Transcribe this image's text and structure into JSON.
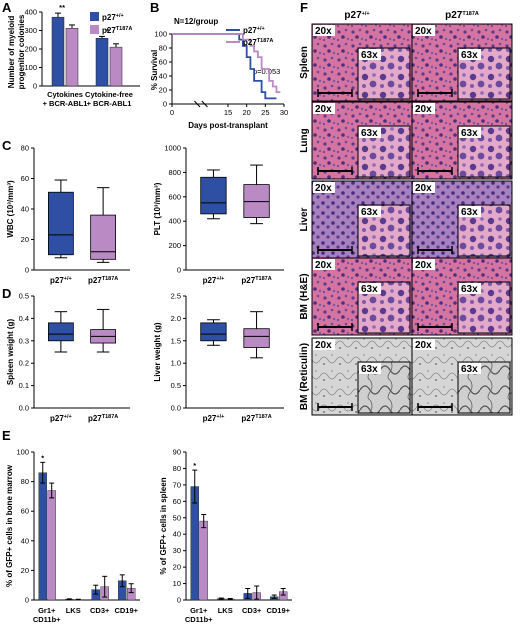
{
  "colors": {
    "blue": "#2E4FA3",
    "pink": "#B98AC4",
    "he_pink": "#D96F9B",
    "he_purple": "#5B3A8C",
    "reticulin": "#C9C9C9"
  },
  "groups": {
    "wt": "p27+/+",
    "mut": "p27T187A"
  },
  "groups_parts": {
    "wt_base": "p27",
    "wt_sup": "+/+",
    "mut_base": "p27",
    "mut_sup": "T187A"
  },
  "panelA": {
    "label": "A",
    "ylabel_line1": "Number of myeloid",
    "ylabel_line2": "progenitor colonies",
    "yticks": [
      "0",
      "100",
      "200",
      "300",
      "400"
    ],
    "categories": [
      {
        "line1": "Cytokines",
        "line2": "+ BCR-ABL1",
        "sig": "**"
      },
      {
        "line1": "Cytokine-free",
        "line2": "+ BCR-ABL1",
        "sig": "*"
      }
    ]
  },
  "panelB": {
    "label": "B",
    "n_label": "N=12/group",
    "pvalue": "p=0.053",
    "ylabel": "% Survival",
    "xlabel": "Days post-transplant",
    "yticks": [
      "0",
      "20",
      "40",
      "60",
      "80",
      "100"
    ],
    "xticks": [
      "0",
      "15",
      "20",
      "25",
      "30"
    ]
  },
  "panelC": {
    "label": "C",
    "wbc_ylabel": "WBC (10³/mm³)",
    "plt_ylabel": "PLT (10³/mm³)",
    "wbc_yticks": [
      "0",
      "20",
      "40",
      "60",
      "80"
    ],
    "plt_yticks": [
      "0",
      "200",
      "400",
      "600",
      "800",
      "1000"
    ]
  },
  "panelD": {
    "label": "D",
    "spleen_ylabel": "Spleen weight (g)",
    "liver_ylabel": "Liver weight (g)",
    "spleen_yticks": [
      "0.0",
      "0.1",
      "0.2",
      "0.3",
      "0.4",
      "0.5"
    ],
    "liver_yticks": [
      "0.0",
      "0.5",
      "1.0",
      "1.5",
      "2.0",
      "2.5"
    ]
  },
  "panelE": {
    "label": "E",
    "bm_ylabel": "% of GFP+ cells in bone marrow",
    "spl_ylabel": "% of GFP+ cells in spleen",
    "bm_yticks": [
      "0",
      "20",
      "40",
      "60",
      "80",
      "100"
    ],
    "spl_yticks": [
      "0",
      "10",
      "20",
      "30",
      "40",
      "50",
      "60",
      "70",
      "80",
      "90"
    ],
    "categories": [
      {
        "line1": "Gr1+",
        "line2": "CD11b+"
      },
      {
        "line1": "LKS",
        "line2": ""
      },
      {
        "line1": "CD3+",
        "line2": ""
      },
      {
        "line1": "CD19+",
        "line2": ""
      }
    ],
    "sig": "*"
  },
  "panelF": {
    "label": "F",
    "col_wt": "p27+/+",
    "col_mut": "p27T187A",
    "rows": [
      "Spleen",
      "Lung",
      "Liver",
      "BM (H&E)",
      "BM (Reticulin)"
    ],
    "mag_low": "20x",
    "mag_high": "63x"
  },
  "chart_data": [
    {
      "type": "bar",
      "panel": "A",
      "categories": [
        "Cytokines + BCR-ABL1",
        "Cytokine-free + BCR-ABL1"
      ],
      "series": [
        {
          "name": "p27+/+",
          "values": [
            372,
            258
          ]
        },
        {
          "name": "p27T187A",
          "values": [
            312,
            210
          ]
        }
      ],
      "errors": [
        [
          22,
          10
        ],
        [
          18,
          18
        ]
      ],
      "ylim": [
        0,
        400
      ]
    },
    {
      "type": "line",
      "panel": "B",
      "xlim": [
        0,
        30
      ],
      "ylim": [
        0,
        100
      ],
      "series": [
        {
          "name": "p27+/+",
          "x": [
            0,
            15,
            18,
            18,
            19,
            19,
            20,
            20,
            21,
            21,
            22,
            22,
            24,
            24,
            25,
            25,
            28
          ],
          "y": [
            100,
            100,
            100,
            92,
            92,
            83,
            83,
            67,
            67,
            50,
            50,
            33,
            33,
            17,
            17,
            8,
            8
          ]
        },
        {
          "name": "p27T187A",
          "x": [
            0,
            15,
            19,
            19,
            21,
            21,
            22,
            22,
            23,
            23,
            24,
            24,
            26,
            26,
            27,
            27,
            28,
            28,
            29
          ],
          "y": [
            100,
            100,
            100,
            92,
            92,
            83,
            83,
            75,
            75,
            67,
            67,
            50,
            50,
            33,
            33,
            25,
            25,
            17,
            17
          ]
        }
      ]
    },
    {
      "type": "box",
      "panel": "C-WBC",
      "ylim": [
        0,
        80
      ],
      "categories": [
        "p27+/+",
        "p27T187A"
      ],
      "series": [
        {
          "name": "p27+/+",
          "min": 8,
          "q1": 10,
          "median": 23,
          "q3": 51,
          "max": 59
        },
        {
          "name": "p27T187A",
          "min": 5,
          "q1": 7,
          "median": 12,
          "q3": 36,
          "max": 54
        }
      ]
    },
    {
      "type": "box",
      "panel": "C-PLT",
      "ylim": [
        0,
        1000
      ],
      "categories": [
        "p27+/+",
        "p27T187A"
      ],
      "series": [
        {
          "name": "p27+/+",
          "min": 420,
          "q1": 460,
          "median": 550,
          "q3": 760,
          "max": 820
        },
        {
          "name": "p27T187A",
          "min": 380,
          "q1": 430,
          "median": 560,
          "q3": 700,
          "max": 860
        }
      ]
    },
    {
      "type": "box",
      "panel": "D-Spleen",
      "ylim": [
        0,
        0.5
      ],
      "categories": [
        "p27+/+",
        "p27T187A"
      ],
      "series": [
        {
          "name": "p27+/+",
          "min": 0.25,
          "q1": 0.3,
          "median": 0.33,
          "q3": 0.38,
          "max": 0.43
        },
        {
          "name": "p27T187A",
          "min": 0.25,
          "q1": 0.29,
          "median": 0.32,
          "q3": 0.35,
          "max": 0.44
        }
      ]
    },
    {
      "type": "box",
      "panel": "D-Liver",
      "ylim": [
        0,
        2.5
      ],
      "categories": [
        "p27+/+",
        "p27T187A"
      ],
      "series": [
        {
          "name": "p27+/+",
          "min": 1.4,
          "q1": 1.5,
          "median": 1.65,
          "q3": 1.9,
          "max": 1.97
        },
        {
          "name": "p27T187A",
          "min": 1.12,
          "q1": 1.35,
          "median": 1.6,
          "q3": 1.77,
          "max": 2.15
        }
      ]
    },
    {
      "type": "bar",
      "panel": "E-BM",
      "ylim": [
        0,
        100
      ],
      "categories": [
        "Gr1+ CD11b+",
        "LKS",
        "CD3+",
        "CD19+"
      ],
      "series": [
        {
          "name": "p27+/+",
          "values": [
            86,
            0.5,
            7,
            13
          ]
        },
        {
          "name": "p27T187A",
          "values": [
            74,
            0.3,
            9,
            8
          ]
        }
      ],
      "errors": [
        [
          7,
          0.3,
          3,
          4
        ],
        [
          5,
          0.2,
          7,
          3
        ]
      ]
    },
    {
      "type": "bar",
      "panel": "E-Spleen",
      "ylim": [
        0,
        90
      ],
      "categories": [
        "Gr1+ CD11b+",
        "LKS",
        "CD3+",
        "CD19+"
      ],
      "series": [
        {
          "name": "p27+/+",
          "values": [
            69,
            0.8,
            4,
            2
          ]
        },
        {
          "name": "p27T187A",
          "values": [
            48,
            0.6,
            4.5,
            5
          ]
        }
      ],
      "errors": [
        [
          10,
          0.4,
          3,
          1
        ],
        [
          4,
          0.3,
          4,
          2
        ]
      ]
    }
  ]
}
